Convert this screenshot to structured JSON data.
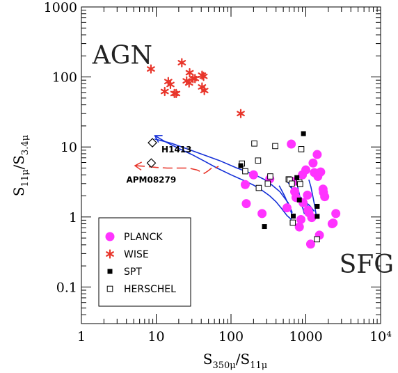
{
  "chart_data": {
    "type": "scatter",
    "xlabel": "S_{350μ}/S_{11μ}",
    "ylabel": "S_{11μ}/S_{3.4μ}",
    "xscale": "log",
    "yscale": "log",
    "xlim": [
      1,
      10000
    ],
    "ylim": [
      0.03,
      1000
    ],
    "x_ticks": [
      {
        "value": 1,
        "label": "1"
      },
      {
        "value": 10,
        "label": "10"
      },
      {
        "value": 100,
        "label": "100"
      },
      {
        "value": 1000,
        "label": "1000"
      },
      {
        "value": 10000,
        "label": "10⁴"
      }
    ],
    "y_ticks": [
      {
        "value": 0.1,
        "label": "0.1"
      },
      {
        "value": 1,
        "label": "1"
      },
      {
        "value": 10,
        "label": "10"
      },
      {
        "value": 100,
        "label": "100"
      },
      {
        "value": 1000,
        "label": "1000"
      }
    ],
    "region_labels": [
      {
        "text": "AGN",
        "x": 1.4,
        "y": 155
      },
      {
        "text": "SFG",
        "x": 2800,
        "y": 0.16
      }
    ],
    "legend": {
      "placement": "bottom-left",
      "entries": [
        {
          "label": "PLANCK",
          "marker": "circle",
          "color": "#ff33ff"
        },
        {
          "label": "WISE",
          "marker": "asterisk",
          "color": "#e8352a"
        },
        {
          "label": "SPT",
          "marker": "filled-square",
          "color": "#000000"
        },
        {
          "label": "HERSCHEL",
          "marker": "open-square",
          "color": "#000000"
        }
      ]
    },
    "colors": {
      "planck": "#ff33ff",
      "wise": "#e8352a",
      "track_blue": "#1530d8",
      "track_red": "#e8352a",
      "black": "#000000"
    },
    "series": [
      {
        "name": "PLANCK",
        "marker": "circle",
        "points": [
          [
            160,
            1.55
          ],
          [
            260,
            1.12
          ],
          [
            200,
            4.0
          ],
          [
            155,
            2.9
          ],
          [
            330,
            3.5
          ],
          [
            640,
            11.0
          ],
          [
            680,
            3.2
          ],
          [
            710,
            2.3
          ],
          [
            740,
            1.9
          ],
          [
            820,
            0.72
          ],
          [
            860,
            0.92
          ],
          [
            900,
            4.0
          ],
          [
            920,
            1.6
          ],
          [
            1000,
            4.7
          ],
          [
            1050,
            2.05
          ],
          [
            1070,
            1.25
          ],
          [
            1100,
            1.15
          ],
          [
            1200,
            0.98
          ],
          [
            1250,
            5.9
          ],
          [
            1300,
            4.3
          ],
          [
            1420,
            7.8
          ],
          [
            1450,
            3.8
          ],
          [
            1520,
            0.55
          ],
          [
            1580,
            4.4
          ],
          [
            1700,
            2.5
          ],
          [
            1720,
            2.25
          ],
          [
            1790,
            1.95
          ],
          [
            1160,
            0.41
          ],
          [
            2250,
            0.8
          ],
          [
            2320,
            0.82
          ],
          [
            2520,
            1.12
          ],
          [
            560,
            1.35
          ]
        ]
      },
      {
        "name": "WISE",
        "marker": "asterisk",
        "points": [
          [
            8.5,
            130
          ],
          [
            13,
            62
          ],
          [
            14.5,
            86
          ],
          [
            15.5,
            78
          ],
          [
            17.5,
            58
          ],
          [
            18.5,
            58
          ],
          [
            22,
            160
          ],
          [
            25.5,
            88
          ],
          [
            27.5,
            82
          ],
          [
            28,
            115
          ],
          [
            31,
            95
          ],
          [
            33,
            95
          ],
          [
            41,
            106
          ],
          [
            43,
            102
          ],
          [
            41,
            72
          ],
          [
            44,
            64
          ],
          [
            135,
            30
          ]
        ]
      },
      {
        "name": "SPT",
        "marker": "filled-square",
        "points": [
          [
            135,
            5.4
          ],
          [
            280,
            0.73
          ],
          [
            680,
            1.03
          ],
          [
            760,
            3.65
          ],
          [
            820,
            1.75
          ],
          [
            930,
            15.5
          ],
          [
            1420,
            1.42
          ],
          [
            1420,
            1.02
          ]
        ]
      },
      {
        "name": "HERSCHEL",
        "marker": "open-square",
        "points": [
          [
            140,
            5.8
          ],
          [
            155,
            4.5
          ],
          [
            205,
            11.2
          ],
          [
            230,
            6.4
          ],
          [
            235,
            2.6
          ],
          [
            310,
            3.0
          ],
          [
            335,
            3.8
          ],
          [
            390,
            10.3
          ],
          [
            590,
            3.45
          ],
          [
            610,
            3.4
          ],
          [
            650,
            3.0
          ],
          [
            820,
            3.1
          ],
          [
            840,
            2.95
          ],
          [
            870,
            9.3
          ],
          [
            670,
            0.83
          ],
          [
            1410,
            0.48
          ]
        ]
      }
    ],
    "annotated_sources": [
      {
        "label": "H1413",
        "x": 8.9,
        "y": 11.5
      },
      {
        "label": "APM08279",
        "x": 8.6,
        "y": 5.9
      }
    ],
    "tracks": [
      {
        "color": "blue",
        "points": [
          [
            9.6,
            14.5
          ],
          [
            13,
            12
          ],
          [
            20,
            9.5
          ],
          [
            30,
            7.8
          ],
          [
            45,
            6.2
          ],
          [
            65,
            5.0
          ],
          [
            100,
            4.0
          ],
          [
            150,
            3.3
          ],
          [
            200,
            2.85
          ],
          [
            260,
            2.4
          ],
          [
            330,
            2.0
          ],
          [
            400,
            1.65
          ],
          [
            480,
            1.3
          ],
          [
            560,
            1.05
          ],
          [
            640,
            0.92
          ]
        ]
      },
      {
        "color": "blue",
        "points": [
          [
            9.5,
            13.0
          ],
          [
            16,
            11.3
          ],
          [
            28,
            9.1
          ],
          [
            45,
            7.6
          ],
          [
            70,
            6.4
          ],
          [
            120,
            5.0
          ],
          [
            200,
            4.1
          ],
          [
            300,
            3.3
          ],
          [
            450,
            2.3
          ],
          [
            580,
            1.6
          ],
          [
            660,
            1.15
          ]
        ]
      },
      {
        "color": "blue",
        "points": [
          [
            550,
            3.6
          ],
          [
            620,
            2.9
          ],
          [
            720,
            2.1
          ],
          [
            850,
            1.6
          ],
          [
            950,
            1.2
          ],
          [
            1020,
            1.05
          ]
        ]
      },
      {
        "color": "blue",
        "points": [
          [
            580,
            3.1
          ],
          [
            700,
            2.3
          ],
          [
            860,
            1.9
          ],
          [
            1000,
            1.55
          ],
          [
            1130,
            1.3
          ],
          [
            1250,
            1.1
          ]
        ]
      },
      {
        "color": "blue",
        "points": [
          [
            620,
            2.7
          ],
          [
            760,
            2.1
          ],
          [
            950,
            1.7
          ],
          [
            1130,
            1.45
          ],
          [
            1300,
            1.2
          ]
        ]
      },
      {
        "color": "blue",
        "points": [
          [
            730,
            3.9
          ],
          [
            790,
            2.5
          ],
          [
            870,
            1.6
          ],
          [
            960,
            1.1
          ]
        ]
      },
      {
        "color": "blue",
        "points": [
          [
            1100,
            3.4
          ],
          [
            1170,
            2.7
          ],
          [
            1240,
            2.0
          ],
          [
            1320,
            1.4
          ],
          [
            1380,
            1.05
          ]
        ]
      },
      {
        "color": "blue",
        "points": [
          [
            440,
            2.8
          ],
          [
            520,
            2.0
          ],
          [
            600,
            1.4
          ],
          [
            660,
            1.05
          ]
        ]
      },
      {
        "color": "red-dashed",
        "points": [
          [
            5.2,
            5.4
          ],
          [
            7,
            5.3
          ],
          [
            10,
            5.1
          ],
          [
            14,
            5.0
          ],
          [
            20,
            5.0
          ],
          [
            27,
            5.0
          ],
          [
            35,
            4.7
          ],
          [
            44,
            4.2
          ],
          [
            50,
            4.6
          ],
          [
            55,
            5.0
          ],
          [
            60,
            4.9
          ],
          [
            68,
            5.3
          ]
        ]
      }
    ]
  }
}
